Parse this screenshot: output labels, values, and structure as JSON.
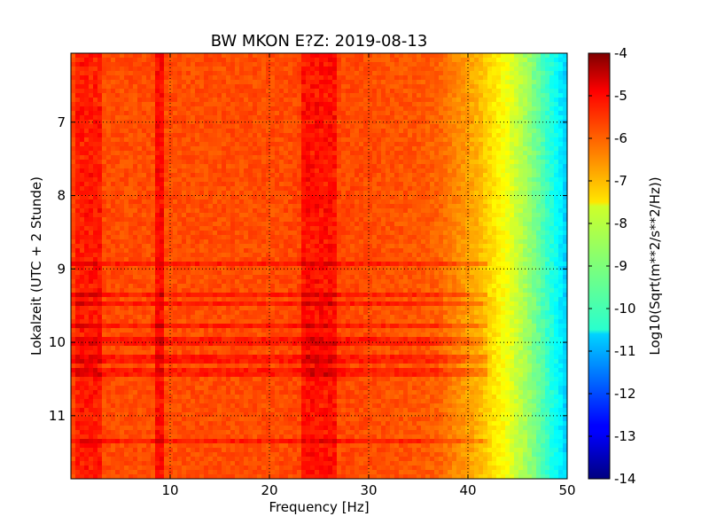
{
  "chart_data": {
    "type": "heatmap",
    "title": "BW MKON E?Z: 2019-08-13",
    "xlabel": "Frequency [Hz]",
    "ylabel": "Lokalzeit (UTC + 2 Stunde)",
    "xlim": [
      0,
      50
    ],
    "ylim": [
      6.06,
      11.86
    ],
    "y_axis_inverted": true,
    "x_ticks": [
      "10",
      "20",
      "30",
      "40",
      "50"
    ],
    "y_ticks": [
      "7",
      "8",
      "9",
      "10",
      "11"
    ],
    "grid": true,
    "colormap": "jet",
    "colorbar": {
      "label": "Log10(Sqrt(m**2/s**2/Hz))",
      "min": -14,
      "max": -4,
      "ticks": [
        "-4",
        "-5",
        "-6",
        "-7",
        "-8",
        "-9",
        "-10",
        "-11",
        "-12",
        "-13",
        "-14"
      ]
    },
    "frequency_profile": {
      "frequency_hz": [
        0,
        5,
        10,
        15,
        20,
        25,
        30,
        35,
        37,
        38,
        39,
        40,
        41,
        42,
        43,
        44,
        45,
        46,
        47,
        48,
        49,
        50
      ],
      "log10_amplitude": [
        -5.9,
        -6.0,
        -6.0,
        -6.0,
        -6.0,
        -5.9,
        -6.0,
        -6.1,
        -6.2,
        -6.4,
        -6.6,
        -6.8,
        -7.0,
        -7.3,
        -7.6,
        -7.9,
        -8.3,
        -8.7,
        -9.2,
        -9.7,
        -10.2,
        -10.8
      ]
    },
    "stronger_bands": [
      {
        "frequency_hz": [
          23,
          27
        ],
        "log10_amplitude": -5.4
      },
      {
        "frequency_hz": [
          8.5,
          9.2
        ],
        "log10_amplitude": -5.3
      },
      {
        "frequency_hz": [
          0.5,
          3.2
        ],
        "log10_amplitude": -5.5
      }
    ],
    "high_amplitude_time_bands": [
      {
        "time": 8.93,
        "log10_amplitude": -5.0
      },
      {
        "time": 9.35,
        "log10_amplitude": -5.1
      },
      {
        "time": 9.46,
        "log10_amplitude": -5.2
      },
      {
        "time": 9.77,
        "log10_amplitude": -5.1
      },
      {
        "time": 9.98,
        "log10_amplitude": -5.0
      },
      {
        "time": 10.22,
        "log10_amplitude": -5.3
      },
      {
        "time": 10.4,
        "log10_amplitude": -5.1
      },
      {
        "time": 11.33,
        "log10_amplitude": -4.8
      }
    ]
  }
}
